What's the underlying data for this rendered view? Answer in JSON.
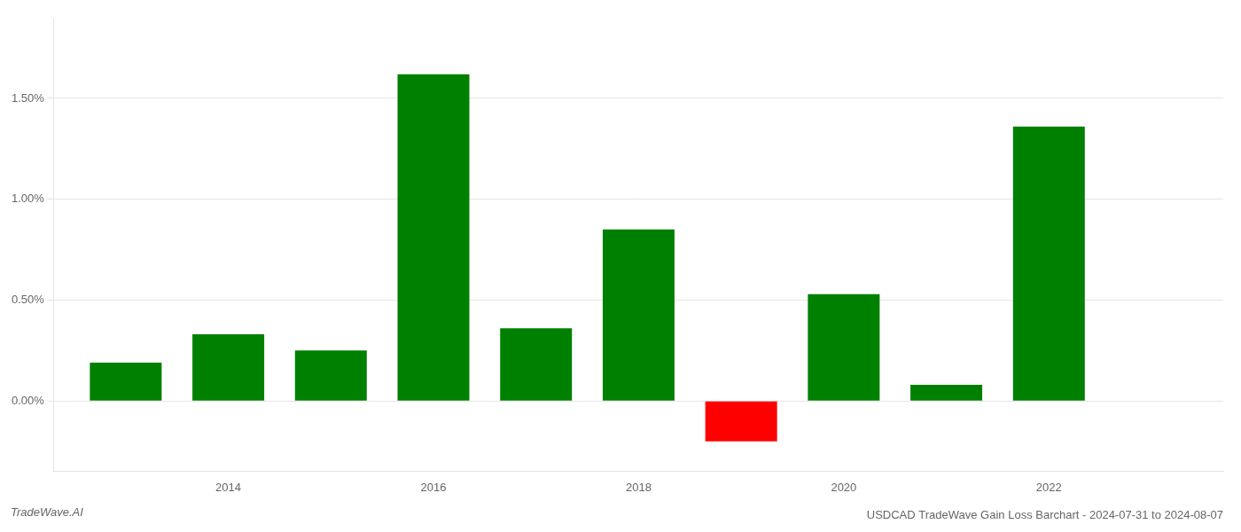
{
  "chart_data": {
    "type": "bar",
    "title": "USDCAD TradeWave Gain Loss Barchart - 2024-07-31 to 2024-08-07",
    "annotations": [
      {
        "text": "TradeWave.AI"
      }
    ],
    "x": [
      2013,
      2014,
      2015,
      2016,
      2017,
      2018,
      2019,
      2020,
      2021,
      2022
    ],
    "values": [
      0.0019,
      0.0033,
      0.0025,
      0.0162,
      0.0036,
      0.0085,
      -0.002,
      0.0053,
      0.0008,
      0.0136
    ],
    "colors": [
      "#008000",
      "#008000",
      "#008000",
      "#008000",
      "#008000",
      "#008000",
      "#ff0000",
      "#008000",
      "#008000",
      "#008000"
    ],
    "xlim": [
      2012.3,
      2023.7
    ],
    "xticks": [
      2014,
      2016,
      2018,
      2020,
      2022
    ],
    "ylim": [
      -0.0035,
      0.019
    ],
    "yticks": [
      {
        "value": 0.0,
        "label": "0.00%"
      },
      {
        "value": 0.005,
        "label": "0.50%"
      },
      {
        "value": 0.01,
        "label": "1.00%"
      },
      {
        "value": 0.015,
        "label": "1.50%"
      }
    ],
    "grid": true
  }
}
